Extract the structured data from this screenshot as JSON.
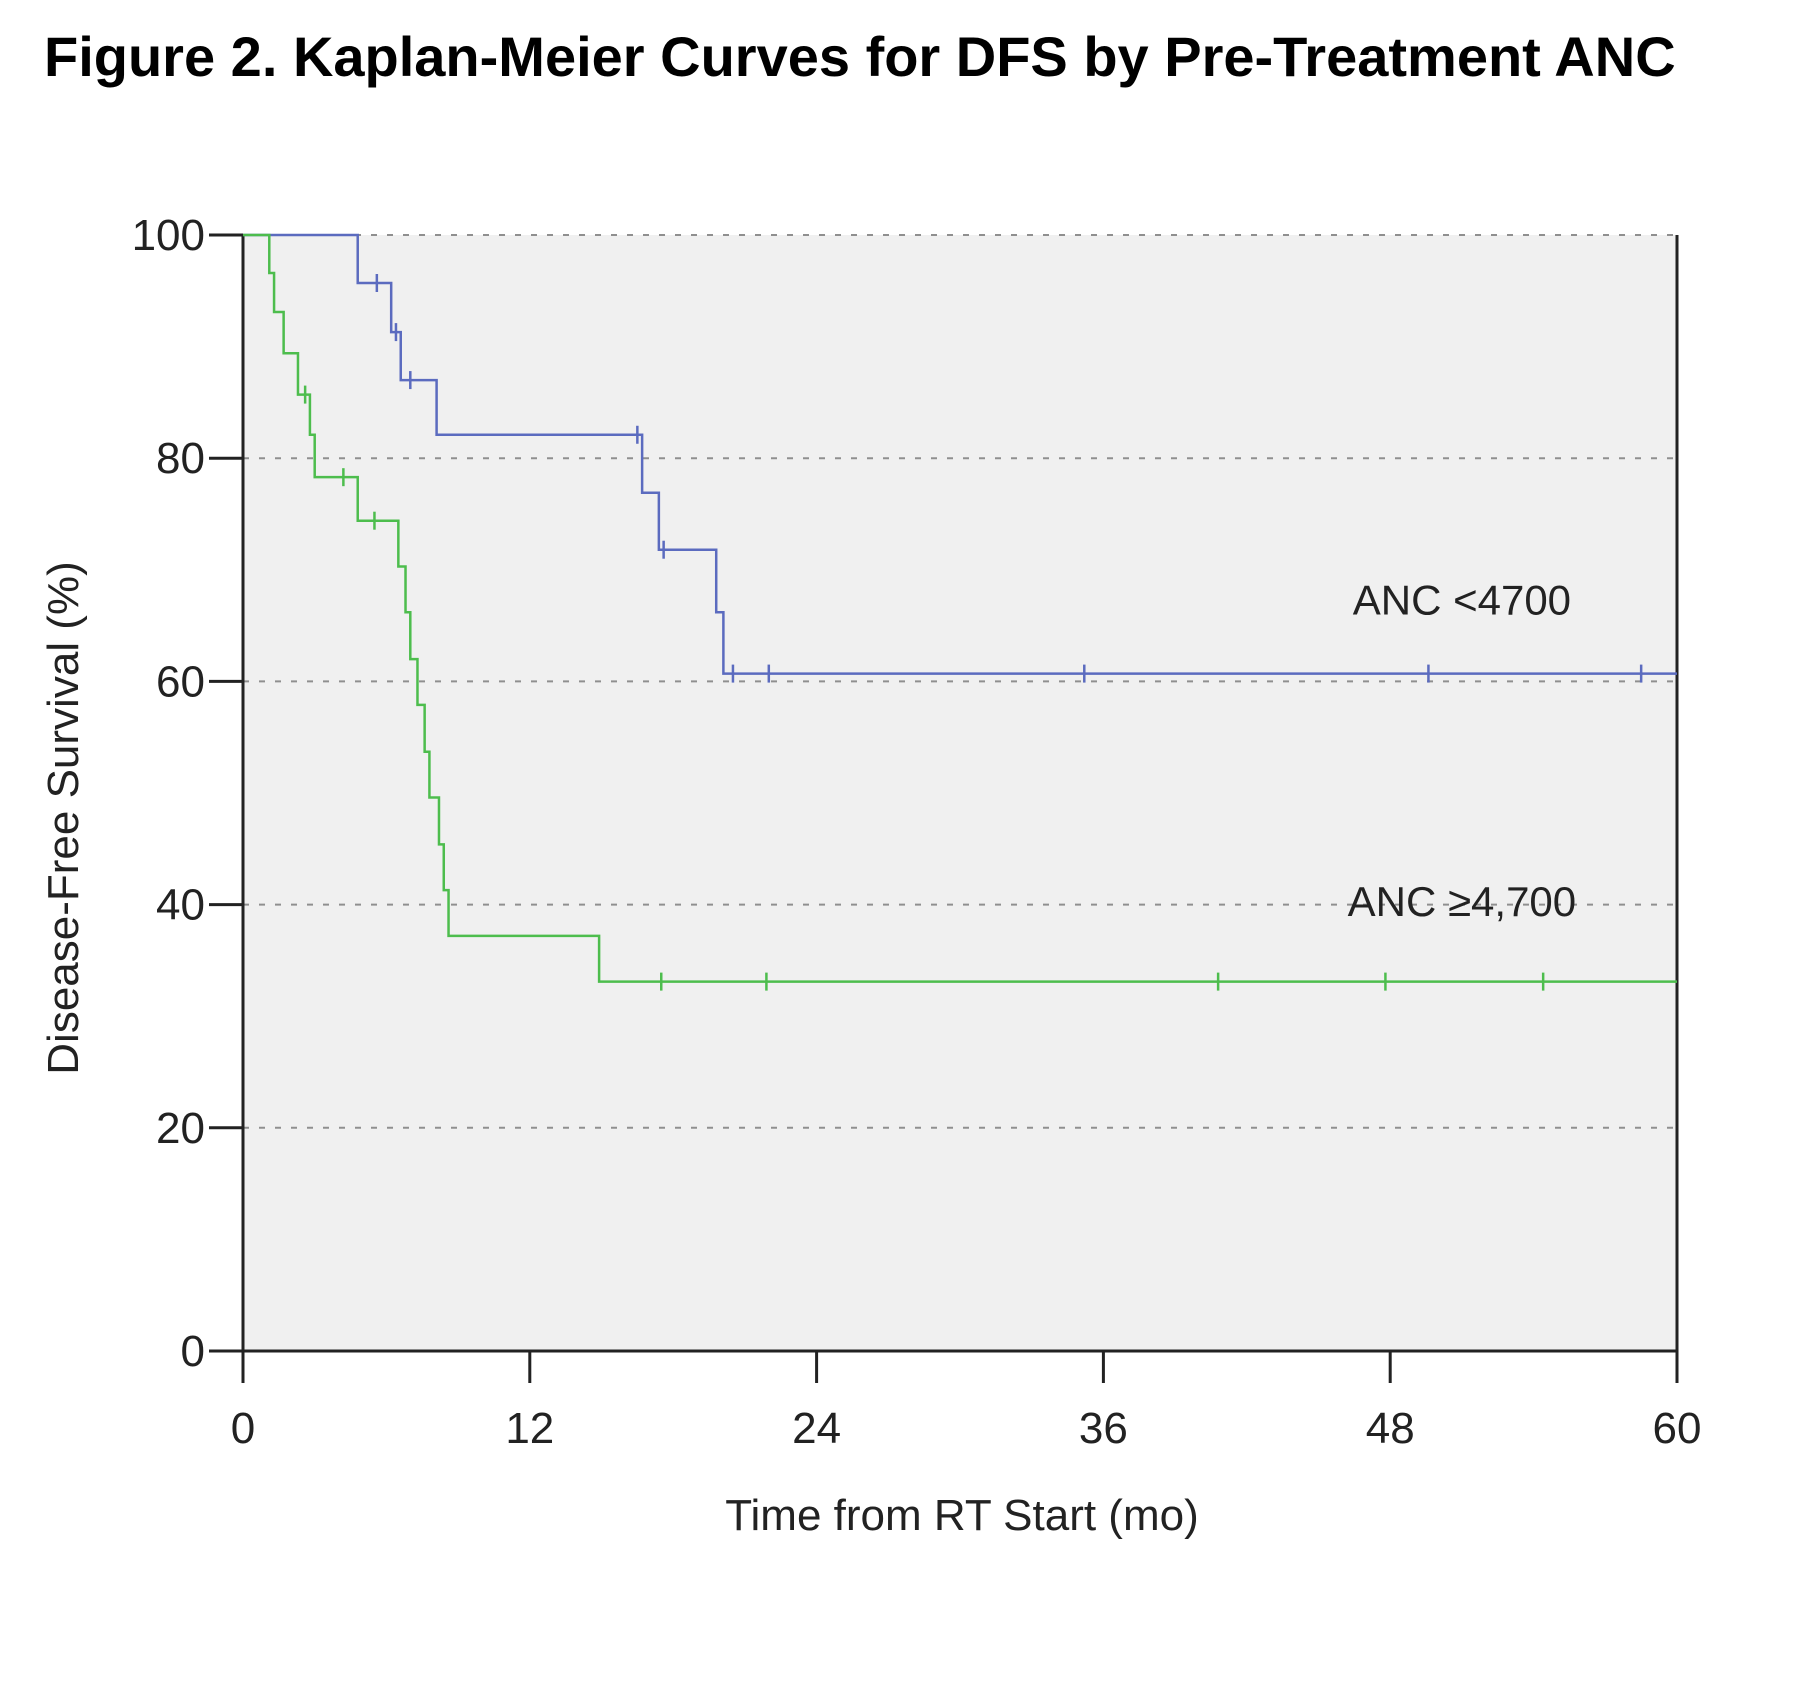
{
  "figure_title": "Figure 2. Kaplan-Meier Curves for DFS by Pre-Treatment ANC",
  "chart_data": {
    "type": "line",
    "subtype": "kaplan-meier step",
    "title": "Figure 2. Kaplan-Meier Curves for DFS by Pre-Treatment ANC",
    "xlabel": "Time from RT Start (mo)",
    "ylabel": "Disease-Free Survival (%)",
    "xlim": [
      0,
      60
    ],
    "ylim": [
      0,
      100
    ],
    "x_ticks": [
      0,
      12,
      24,
      36,
      48,
      60
    ],
    "y_ticks": [
      0,
      20,
      40,
      60,
      80,
      100
    ],
    "grid": "horizontal dashed at y = 20, 40, 60, 80, 100",
    "plot_background": "#f0f0f0",
    "series": [
      {
        "name": "ANC <4700",
        "color": "#5b6bbf",
        "steps": [
          {
            "x": 0,
            "y": 100
          },
          {
            "x": 4.8,
            "y": 95.7
          },
          {
            "x": 6.2,
            "y": 91.3
          },
          {
            "x": 6.6,
            "y": 87.0
          },
          {
            "x": 8.1,
            "y": 82.1
          },
          {
            "x": 16.7,
            "y": 76.9
          },
          {
            "x": 17.4,
            "y": 71.8
          },
          {
            "x": 19.8,
            "y": 66.2
          },
          {
            "x": 20.1,
            "y": 60.7
          }
        ],
        "x_end": 60,
        "censored": [
          {
            "x": 5.6,
            "y": 95.7
          },
          {
            "x": 6.4,
            "y": 91.3
          },
          {
            "x": 7.0,
            "y": 87.0
          },
          {
            "x": 16.5,
            "y": 82.1
          },
          {
            "x": 17.6,
            "y": 71.8
          },
          {
            "x": 20.5,
            "y": 60.7
          },
          {
            "x": 22.0,
            "y": 60.7
          },
          {
            "x": 35.2,
            "y": 60.7
          },
          {
            "x": 49.6,
            "y": 60.7
          },
          {
            "x": 58.5,
            "y": 60.7
          }
        ]
      },
      {
        "name": "ANC ≥4,700",
        "color": "#4dbd4d",
        "steps": [
          {
            "x": 0,
            "y": 100
          },
          {
            "x": 1.1,
            "y": 96.6
          },
          {
            "x": 1.3,
            "y": 93.1
          },
          {
            "x": 1.7,
            "y": 89.4
          },
          {
            "x": 2.3,
            "y": 85.7
          },
          {
            "x": 2.8,
            "y": 82.1
          },
          {
            "x": 3.0,
            "y": 78.3
          },
          {
            "x": 4.8,
            "y": 74.4
          },
          {
            "x": 6.5,
            "y": 70.3
          },
          {
            "x": 6.8,
            "y": 66.2
          },
          {
            "x": 7.0,
            "y": 62.0
          },
          {
            "x": 7.3,
            "y": 57.9
          },
          {
            "x": 7.6,
            "y": 53.7
          },
          {
            "x": 7.8,
            "y": 49.6
          },
          {
            "x": 8.2,
            "y": 45.4
          },
          {
            "x": 8.4,
            "y": 41.3
          },
          {
            "x": 8.6,
            "y": 37.2
          },
          {
            "x": 14.9,
            "y": 33.1
          }
        ],
        "x_end": 60,
        "censored": [
          {
            "x": 2.6,
            "y": 85.7
          },
          {
            "x": 4.2,
            "y": 78.3
          },
          {
            "x": 5.5,
            "y": 74.4
          },
          {
            "x": 17.5,
            "y": 33.1
          },
          {
            "x": 21.9,
            "y": 33.1
          },
          {
            "x": 40.8,
            "y": 33.1
          },
          {
            "x": 47.8,
            "y": 33.1
          },
          {
            "x": 54.4,
            "y": 33.1
          }
        ]
      }
    ],
    "annotations": [
      {
        "text": "ANC <4700",
        "x": 51,
        "y": 66
      },
      {
        "text": "ANC ≥4,700",
        "x": 51,
        "y": 39
      }
    ]
  }
}
